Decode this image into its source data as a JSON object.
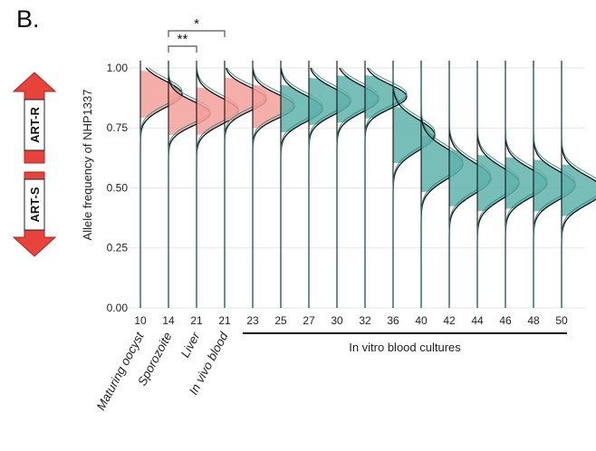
{
  "panel_label": "B.",
  "arrows": {
    "up": {
      "label": "ART-R",
      "color": "#e8433a"
    },
    "down": {
      "label": "ART-S",
      "color": "#e8433a"
    }
  },
  "significance": [
    {
      "label": "*",
      "from_index": 1,
      "to_index": 3
    },
    {
      "label": "**",
      "from_index": 1,
      "to_index": 2
    }
  ],
  "colors": {
    "pre_culture": "#f4a09b",
    "in_vitro": "#5fb3ac",
    "outline": "#111111"
  },
  "bracket_label": "In vitro blood cultures",
  "chart_data": {
    "type": "ridgeline",
    "ylabel": "Allele frequency of NHP1337",
    "ylim": [
      0,
      1.03
    ],
    "yticks": [
      0.0,
      0.25,
      0.5,
      0.75,
      1.0
    ],
    "ytick_labels": [
      "0.00",
      "0.25",
      "0.50",
      "0.75",
      "1.00"
    ],
    "grid": true,
    "categories": [
      "10",
      "14",
      "21",
      "21",
      "23",
      "25",
      "27",
      "30",
      "32",
      "36",
      "40",
      "42",
      "44",
      "46",
      "48",
      "50"
    ],
    "stage_labels": [
      "Maturing oocyst",
      "Sporozoite",
      "Liver",
      "In vivo blood"
    ],
    "series": [
      {
        "x": "10",
        "group": "pre",
        "mode": 0.89,
        "sd": 0.055
      },
      {
        "x": "14",
        "group": "pre",
        "mode": 0.81,
        "sd": 0.05
      },
      {
        "x": "21",
        "group": "pre",
        "mode": 0.82,
        "sd": 0.055
      },
      {
        "x": "21",
        "group": "pre",
        "mode": 0.87,
        "sd": 0.05
      },
      {
        "x": "23",
        "group": "pre",
        "mode": 0.84,
        "sd": 0.05
      },
      {
        "x": "25",
        "group": "in_vitro",
        "mode": 0.83,
        "sd": 0.055
      },
      {
        "x": "27",
        "group": "in_vitro",
        "mode": 0.86,
        "sd": 0.055
      },
      {
        "x": "30",
        "group": "in_vitro",
        "mode": 0.87,
        "sd": 0.055
      },
      {
        "x": "32",
        "group": "in_vitro",
        "mode": 0.88,
        "sd": 0.05
      },
      {
        "x": "36",
        "group": "in_vitro",
        "mode": 0.72,
        "sd": 0.065
      },
      {
        "x": "40",
        "group": "in_vitro",
        "mode": 0.6,
        "sd": 0.065
      },
      {
        "x": "42",
        "group": "in_vitro",
        "mode": 0.54,
        "sd": 0.065
      },
      {
        "x": "44",
        "group": "in_vitro",
        "mode": 0.52,
        "sd": 0.065
      },
      {
        "x": "46",
        "group": "in_vitro",
        "mode": 0.52,
        "sd": 0.06
      },
      {
        "x": "48",
        "group": "in_vitro",
        "mode": 0.51,
        "sd": 0.06
      },
      {
        "x": "50",
        "group": "in_vitro",
        "mode": 0.49,
        "sd": 0.06
      }
    ]
  }
}
